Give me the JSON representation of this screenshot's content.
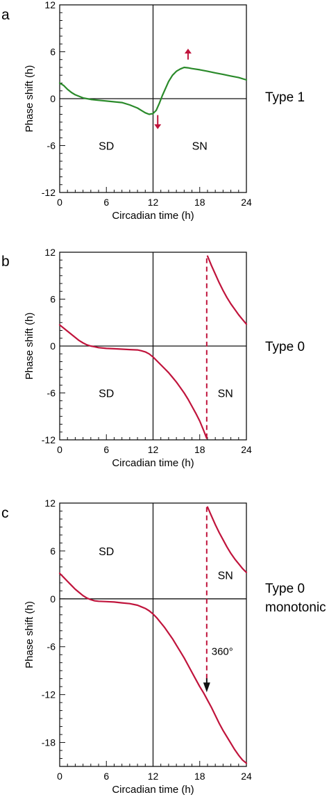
{
  "chart_data": [
    {
      "panel_label": "a",
      "type": "line",
      "type_label": "Type 1",
      "xlabel": "Circadian time (h)",
      "ylabel": "Phase shift (h)",
      "xlim": [
        0,
        24
      ],
      "ylim": [
        -12,
        12
      ],
      "xticks": [
        0,
        6,
        12,
        18,
        24
      ],
      "yticks": [
        -12,
        -6,
        0,
        6,
        12
      ],
      "regions": [
        {
          "label": "SD",
          "x": 6,
          "y": -6
        },
        {
          "label": "SN",
          "x": 18,
          "y": -6
        }
      ],
      "arrows": [
        {
          "x": 16.5,
          "y_from": 5.0,
          "y_to": 6.4,
          "color": "#c0143c"
        },
        {
          "x": 12.6,
          "y_from": -2.1,
          "y_to": -3.9,
          "color": "#c0143c"
        }
      ],
      "series": [
        {
          "color": "#2a8a2a",
          "x": [
            0,
            0.5,
            1,
            1.5,
            2,
            2.5,
            3,
            3.5,
            4,
            5,
            6,
            7,
            8,
            9,
            10,
            10.5,
            11,
            11.5,
            12,
            12.4,
            12.8,
            13.2,
            13.6,
            14,
            14.5,
            15,
            15.5,
            16,
            16.5,
            17,
            18,
            19,
            20,
            21,
            22,
            23,
            24
          ],
          "y": [
            2.0,
            1.7,
            1.2,
            0.8,
            0.5,
            0.3,
            0.1,
            0.0,
            -0.1,
            -0.2,
            -0.3,
            -0.4,
            -0.5,
            -0.8,
            -1.2,
            -1.5,
            -1.8,
            -2.0,
            -1.9,
            -1.5,
            -0.6,
            0.4,
            1.3,
            2.2,
            3.0,
            3.5,
            3.8,
            4.0,
            3.95,
            3.85,
            3.7,
            3.5,
            3.3,
            3.1,
            2.9,
            2.7,
            2.4
          ]
        }
      ]
    },
    {
      "panel_label": "b",
      "type": "line",
      "type_label": "Type 0",
      "xlabel": "Circadian time (h)",
      "ylabel": "Phase shift (h)",
      "xlim": [
        0,
        24
      ],
      "ylim": [
        -12,
        12
      ],
      "xticks": [
        0,
        6,
        12,
        18,
        24
      ],
      "yticks": [
        -12,
        -6,
        0,
        6,
        12
      ],
      "regions": [
        {
          "label": "SD",
          "x": 6,
          "y": -6
        },
        {
          "label": "SN",
          "x": 21.3,
          "y": -6
        }
      ],
      "jump": {
        "x": 18.9,
        "y_from": -11.8,
        "y_to": 11.5,
        "color": "#c0143c",
        "style": "dashed"
      },
      "series": [
        {
          "color": "#c0143c",
          "x": [
            0,
            0.5,
            1,
            1.5,
            2,
            2.5,
            3,
            3.5,
            4,
            4.5,
            5,
            6,
            7,
            8,
            9,
            10,
            10.5,
            11,
            11.5,
            12,
            12.5,
            13,
            13.5,
            14,
            14.5,
            15,
            15.5,
            16,
            16.5,
            17,
            17.5,
            18,
            18.5,
            18.9
          ],
          "y": [
            2.7,
            2.3,
            1.9,
            1.5,
            1.1,
            0.7,
            0.4,
            0.15,
            0.0,
            -0.1,
            -0.2,
            -0.3,
            -0.35,
            -0.4,
            -0.45,
            -0.5,
            -0.6,
            -0.75,
            -1.0,
            -1.4,
            -1.9,
            -2.4,
            -2.9,
            -3.4,
            -4.0,
            -4.6,
            -5.3,
            -6.0,
            -6.8,
            -7.7,
            -8.6,
            -9.6,
            -10.8,
            -11.8
          ]
        },
        {
          "color": "#c0143c",
          "x": [
            19.0,
            19.5,
            20,
            20.5,
            21,
            21.5,
            22,
            22.5,
            23,
            23.5,
            24
          ],
          "y": [
            11.5,
            10.3,
            9.2,
            8.1,
            7.1,
            6.2,
            5.4,
            4.7,
            4.0,
            3.4,
            2.8
          ]
        }
      ]
    },
    {
      "panel_label": "c",
      "type": "line",
      "type_label": "Type 0",
      "type_label_line2": "monotonic",
      "xlabel": "Circadian time (h)",
      "ylabel": "Phase shift (h)",
      "xlim": [
        0,
        24
      ],
      "ylim": [
        -21,
        12
      ],
      "xticks": [
        0,
        6,
        12,
        18,
        24
      ],
      "yticks": [
        -18,
        -12,
        -6,
        0,
        6,
        12
      ],
      "regions": [
        {
          "label": "SD",
          "x": 6,
          "y": 6
        },
        {
          "label": "SN",
          "x": 21.3,
          "y": 3
        }
      ],
      "annotation": {
        "label": "360°",
        "x": 20.9,
        "y": -6.6
      },
      "dashed_arrow": {
        "x": 18.9,
        "y_from": 11.5,
        "y_to": -11.7,
        "color": "#c0143c",
        "head_color": "#111111"
      },
      "series": [
        {
          "color": "#c0143c",
          "x": [
            0,
            0.5,
            1,
            1.5,
            2,
            2.5,
            3,
            3.5,
            4,
            4.5,
            5,
            6,
            7,
            8,
            9,
            10,
            10.5,
            11,
            11.5,
            12,
            12.5,
            13,
            13.5,
            14,
            14.5,
            15,
            15.5,
            16,
            16.5,
            17,
            17.5,
            18,
            18.5,
            19,
            19.5,
            20,
            20.5,
            21,
            21.5,
            22,
            22.5,
            23,
            23.5,
            24
          ],
          "y": [
            3.2,
            2.7,
            2.2,
            1.7,
            1.2,
            0.8,
            0.4,
            0.1,
            -0.1,
            -0.25,
            -0.3,
            -0.35,
            -0.4,
            -0.5,
            -0.6,
            -0.8,
            -1.0,
            -1.2,
            -1.5,
            -1.9,
            -2.4,
            -3.0,
            -3.6,
            -4.3,
            -5.0,
            -5.8,
            -6.6,
            -7.4,
            -8.3,
            -9.2,
            -10.1,
            -11.0,
            -11.8,
            -12.7,
            -13.6,
            -14.6,
            -15.6,
            -16.5,
            -17.3,
            -18.1,
            -18.9,
            -19.6,
            -20.2,
            -20.6
          ]
        },
        {
          "color": "#c0143c",
          "x": [
            19.0,
            19.5,
            20,
            20.5,
            21,
            21.5,
            22,
            22.5,
            23,
            23.5,
            24
          ],
          "y": [
            11.5,
            10.4,
            9.3,
            8.3,
            7.4,
            6.5,
            5.7,
            5.0,
            4.4,
            3.8,
            3.3
          ]
        }
      ]
    }
  ]
}
